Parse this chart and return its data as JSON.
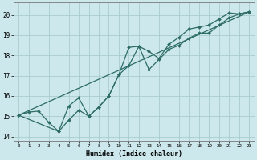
{
  "title": "",
  "xlabel": "Humidex (Indice chaleur)",
  "xlim": [
    -0.5,
    23.5
  ],
  "ylim": [
    13.8,
    20.6
  ],
  "bg_color": "#cce8ec",
  "grid_color": "#aacccc",
  "line_color": "#2d6b65",
  "yticks": [
    14,
    15,
    16,
    17,
    18,
    19,
    20
  ],
  "xticks": [
    0,
    1,
    2,
    3,
    4,
    5,
    6,
    7,
    8,
    9,
    10,
    11,
    12,
    13,
    14,
    15,
    16,
    17,
    18,
    19,
    20,
    21,
    22,
    23
  ],
  "line1_x": [
    0,
    1,
    2,
    3,
    4,
    5,
    6,
    7,
    8,
    9,
    10,
    11,
    12,
    13,
    14,
    15,
    16,
    17,
    18,
    19,
    20,
    21,
    22,
    23
  ],
  "line1_y": [
    15.05,
    15.2,
    15.25,
    14.7,
    14.25,
    14.8,
    15.3,
    15.0,
    15.45,
    16.0,
    17.05,
    18.4,
    18.45,
    17.3,
    17.8,
    18.3,
    18.5,
    18.85,
    19.1,
    19.1,
    19.5,
    19.85,
    20.05,
    20.15
  ],
  "line2_x": [
    0,
    4,
    5,
    6,
    7,
    8,
    9,
    10,
    11,
    12,
    13,
    14,
    15,
    16,
    17,
    18,
    19,
    20,
    21,
    22,
    23
  ],
  "line2_y": [
    15.05,
    14.25,
    15.5,
    15.9,
    15.0,
    15.45,
    16.0,
    17.05,
    17.5,
    18.45,
    18.2,
    17.85,
    18.55,
    18.9,
    19.3,
    19.4,
    19.5,
    19.8,
    20.1,
    20.05,
    20.15
  ],
  "line3_x": [
    0,
    23
  ],
  "line3_y": [
    15.05,
    20.15
  ]
}
